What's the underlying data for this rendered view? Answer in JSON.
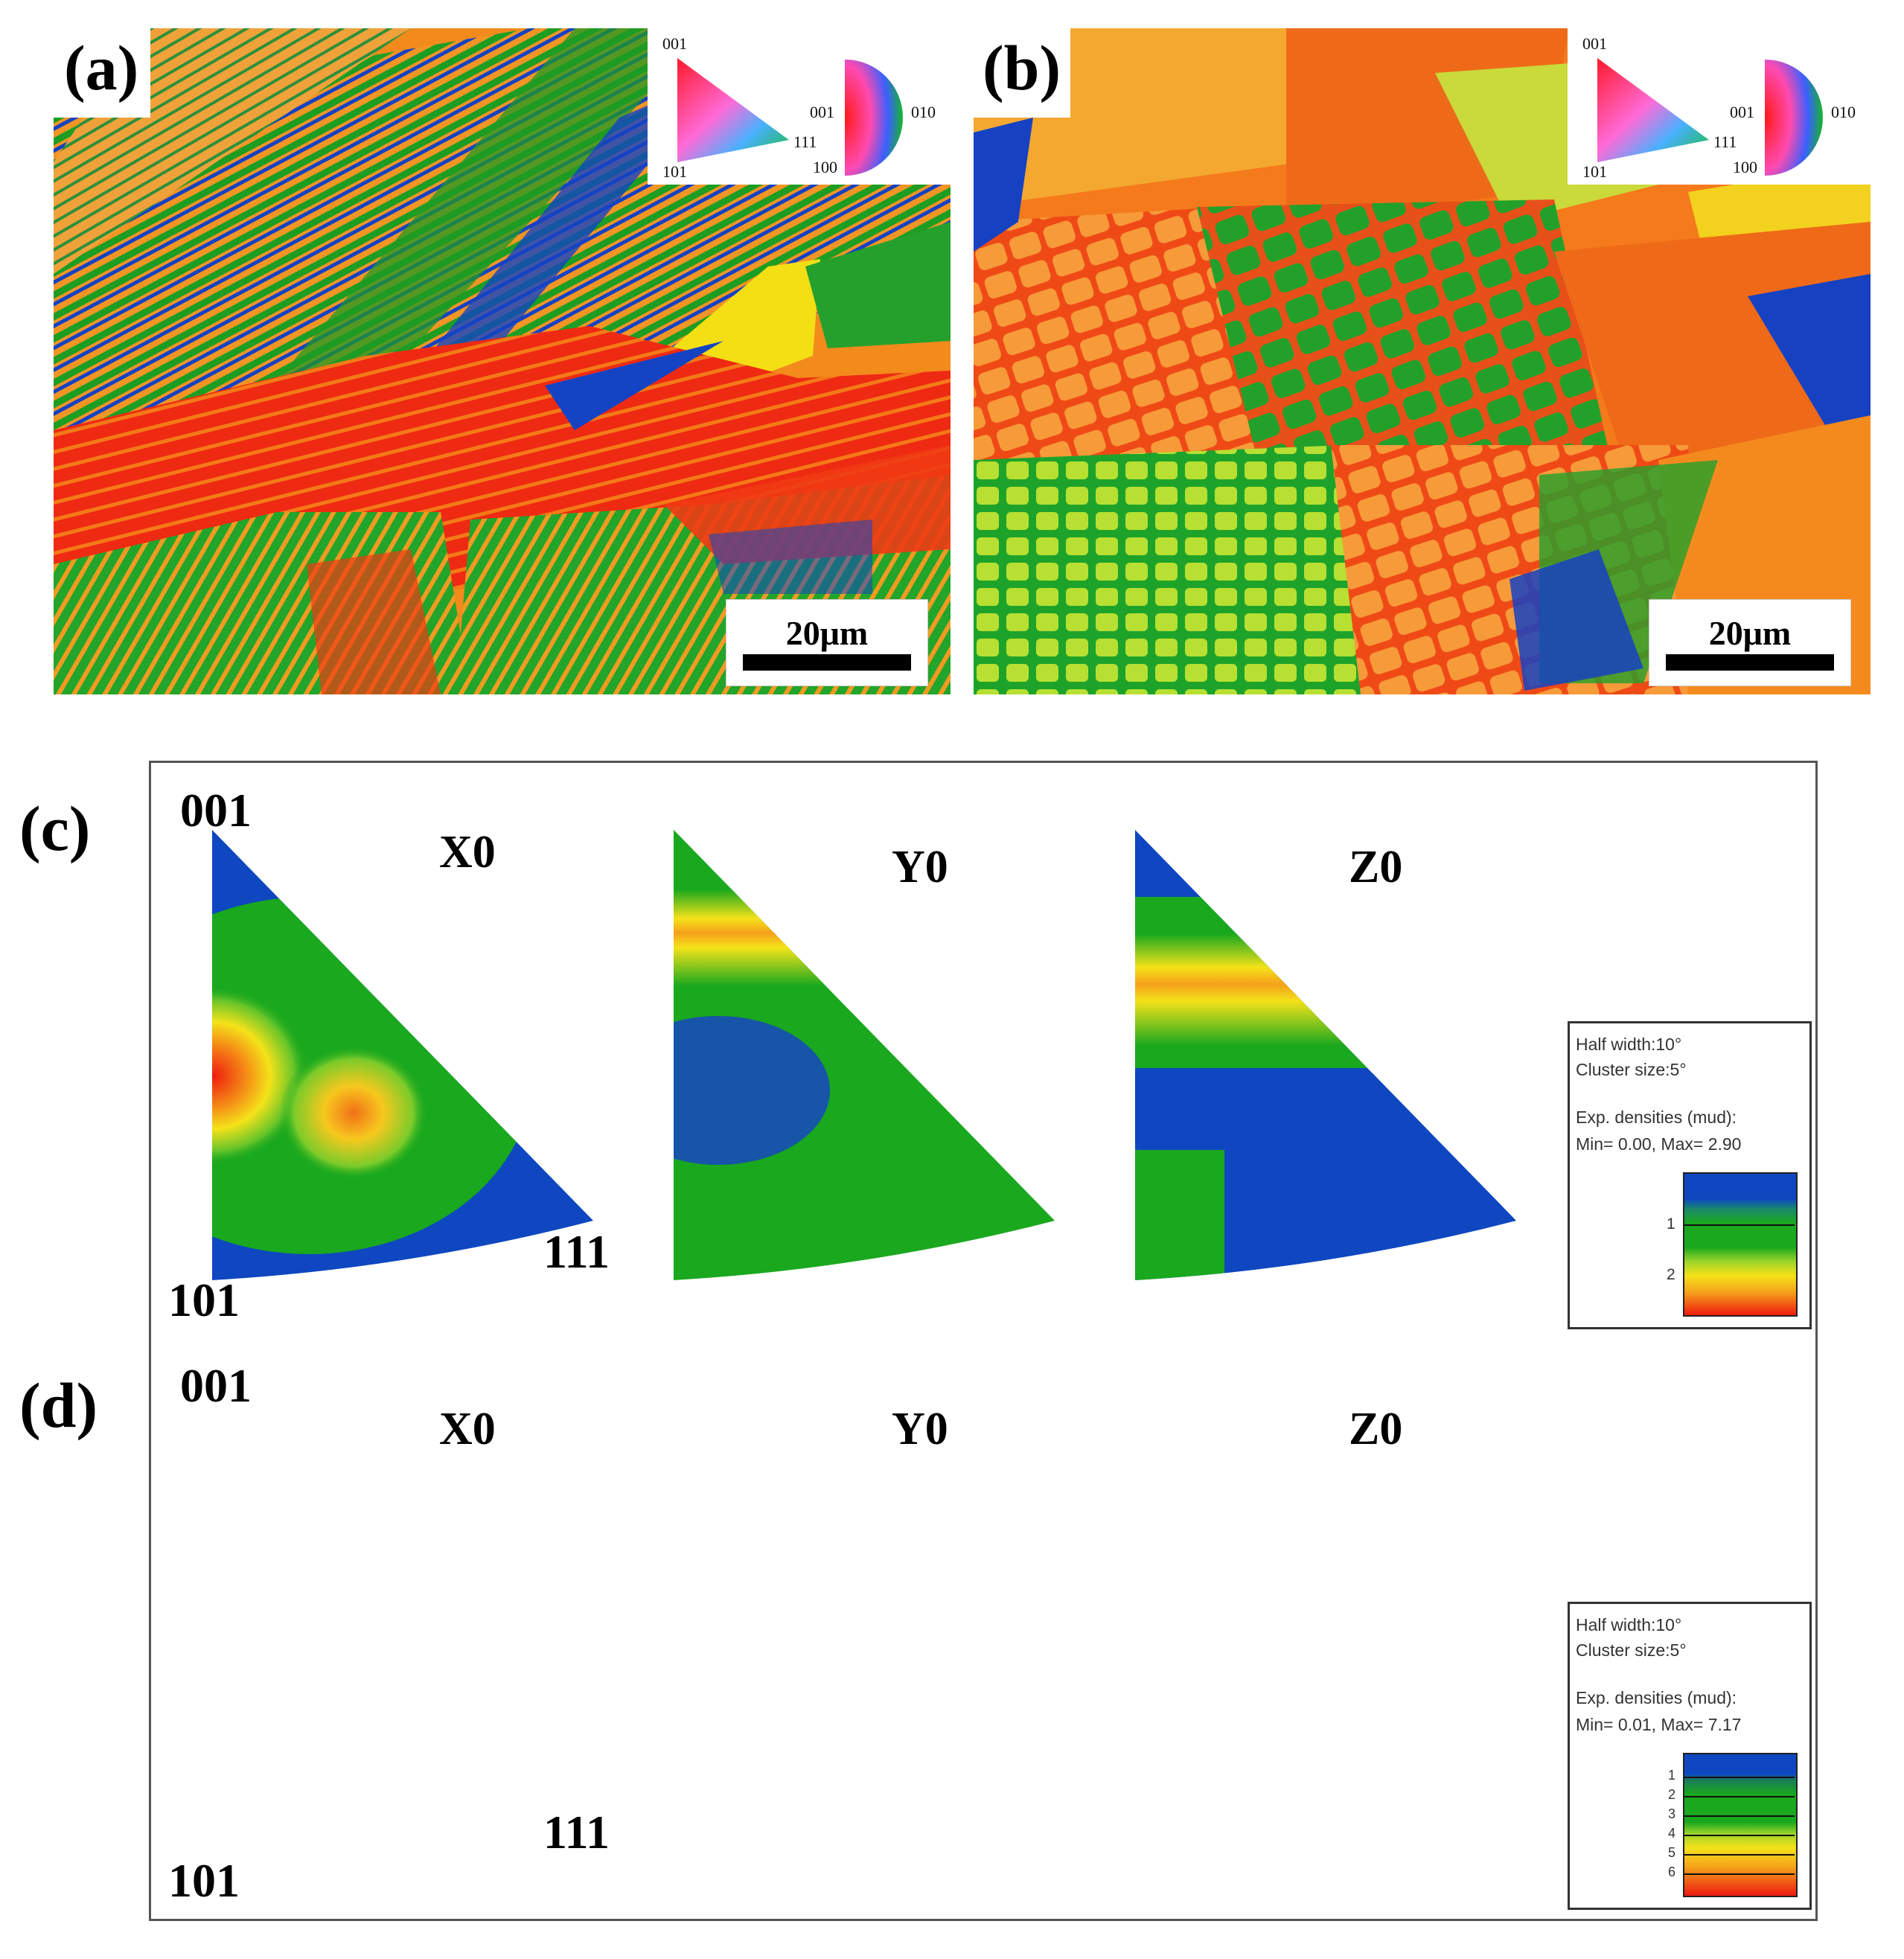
{
  "panels": {
    "a": {
      "label": "(a)",
      "scale": "20μm"
    },
    "b": {
      "label": "(b)",
      "scale": "20μm"
    },
    "c": {
      "label": "(c)"
    },
    "d": {
      "label": "(d)"
    }
  },
  "ipf_key": {
    "triangle": {
      "top": "001",
      "bottom_left": "101",
      "right": "111"
    },
    "half_disc": {
      "left": "001",
      "right": "010",
      "bottom": "100"
    }
  },
  "pole_figures": {
    "corner_top": "001",
    "corner_bottom_left": "101",
    "corner_right": "111",
    "titles": [
      "X0",
      "Y0",
      "Z0"
    ]
  },
  "density_c": {
    "half_width": "Half width:10°",
    "cluster": "Cluster size:5°",
    "exp": "Exp. densities (mud):",
    "minmax": "Min= 0.00, Max= 2.90",
    "ticks": [
      "1",
      "2"
    ]
  },
  "density_d": {
    "half_width": "Half width:10°",
    "cluster": "Cluster size:5°",
    "exp": "Exp. densities (mud):",
    "minmax": "Min= 0.01, Max= 7.17",
    "ticks": [
      "1",
      "2",
      "3",
      "4",
      "5",
      "6"
    ]
  },
  "colors": {
    "blue": "#0b3fbf",
    "green": "#1aa81e",
    "yellow": "#f4e21a",
    "orange": "#f58a16",
    "red": "#f02a10"
  }
}
